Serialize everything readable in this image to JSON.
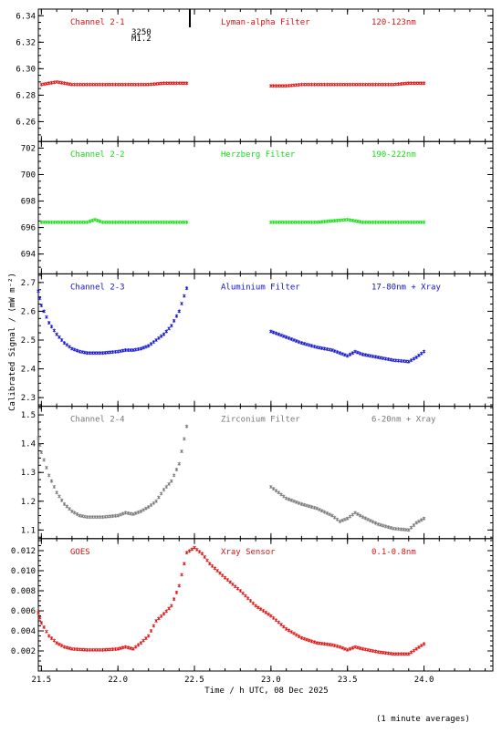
{
  "chart_data": {
    "type": "scatter",
    "ylabel": "Calibrated Signal / (mW m⁻²)",
    "xlabel": "Time / h UTC, 08 Dec 2025",
    "footnote": "(1 minute averages)",
    "xlim": [
      21.48,
      24.45
    ],
    "x_ticks": [
      "21.5",
      "22.0",
      "22.5",
      "23.0",
      "23.5",
      "24.0"
    ],
    "x_tick_values": [
      21.5,
      22.0,
      22.5,
      23.0,
      23.5,
      24.0
    ],
    "marker_note": {
      "line1": "3250",
      "line2": "M1.2",
      "time": 22.47
    },
    "panels": [
      {
        "id": "ch2-1",
        "color": "#dd1111",
        "channel": "Channel 2-1",
        "filter": "Lyman-alpha Filter",
        "band": "120-123nm",
        "ylim": [
          6.245,
          6.345
        ],
        "y_ticks": [
          "6.26",
          "6.28",
          "6.30",
          "6.32",
          "6.34"
        ],
        "y_tick_values": [
          6.26,
          6.28,
          6.3,
          6.32,
          6.34
        ],
        "series": [
          {
            "x": [
              21.5,
              21.55,
              21.6,
              21.65,
              21.7,
              21.8,
              21.9,
              22.0,
              22.1,
              22.2,
              22.3,
              22.4,
              22.45
            ],
            "y": [
              6.288,
              6.289,
              6.29,
              6.289,
              6.288,
              6.288,
              6.288,
              6.288,
              6.288,
              6.288,
              6.289,
              6.289,
              6.289
            ]
          },
          {
            "x": [
              23.0,
              23.1,
              23.2,
              23.3,
              23.4,
              23.5,
              23.6,
              23.7,
              23.8,
              23.9,
              24.0
            ],
            "y": [
              6.287,
              6.287,
              6.288,
              6.288,
              6.288,
              6.288,
              6.288,
              6.288,
              6.288,
              6.289,
              6.289
            ]
          }
        ]
      },
      {
        "id": "ch2-2",
        "color": "#11dd11",
        "channel": "Channel 2-2",
        "filter": "Herzberg Filter",
        "band": "190-222nm",
        "ylim": [
          692.5,
          702.5
        ],
        "y_ticks": [
          "694",
          "696",
          "698",
          "700",
          "702"
        ],
        "y_tick_values": [
          694,
          696,
          698,
          700,
          702
        ],
        "series": [
          {
            "x": [
              21.5,
              21.6,
              21.7,
              21.8,
              21.85,
              21.9,
              22.0,
              22.1,
              22.2,
              22.3,
              22.45
            ],
            "y": [
              696.4,
              696.4,
              696.4,
              696.4,
              696.6,
              696.4,
              696.4,
              696.4,
              696.4,
              696.4,
              696.4
            ]
          },
          {
            "x": [
              23.0,
              23.1,
              23.2,
              23.3,
              23.4,
              23.5,
              23.6,
              23.7,
              23.8,
              23.9,
              24.0
            ],
            "y": [
              696.4,
              696.4,
              696.4,
              696.4,
              696.5,
              696.6,
              696.4,
              696.4,
              696.4,
              696.4,
              696.4
            ]
          }
        ]
      },
      {
        "id": "ch2-3",
        "color": "#1111cc",
        "channel": "Channel 2-3",
        "filter": "Aluminium Filter",
        "band": "17-80nm + Xray",
        "ylim": [
          2.27,
          2.73
        ],
        "y_ticks": [
          "2.3",
          "2.4",
          "2.5",
          "2.6",
          "2.7"
        ],
        "y_tick_values": [
          2.3,
          2.4,
          2.5,
          2.6,
          2.7
        ],
        "series": [
          {
            "x": [
              21.48,
              21.5,
              21.55,
              21.6,
              21.65,
              21.7,
              21.75,
              21.8,
              21.9,
              22.0,
              22.05,
              22.1,
              22.15,
              22.2,
              22.25,
              22.3,
              22.35,
              22.4,
              22.45
            ],
            "y": [
              2.67,
              2.62,
              2.56,
              2.52,
              2.49,
              2.47,
              2.46,
              2.455,
              2.455,
              2.46,
              2.465,
              2.465,
              2.47,
              2.48,
              2.5,
              2.52,
              2.55,
              2.6,
              2.68
            ]
          },
          {
            "x": [
              23.0,
              23.05,
              23.1,
              23.2,
              23.3,
              23.4,
              23.5,
              23.55,
              23.6,
              23.7,
              23.8,
              23.9,
              23.95,
              24.0
            ],
            "y": [
              2.53,
              2.52,
              2.51,
              2.49,
              2.475,
              2.465,
              2.445,
              2.46,
              2.45,
              2.44,
              2.43,
              2.425,
              2.44,
              2.46
            ]
          }
        ]
      },
      {
        "id": "ch2-4",
        "color": "#777777",
        "channel": "Channel 2-4",
        "filter": "Zirconium Filter",
        "band": "6-20nm + Xray",
        "ylim": [
          1.07,
          1.53
        ],
        "y_ticks": [
          "1.1",
          "1.2",
          "1.3",
          "1.4",
          "1.5"
        ],
        "y_tick_values": [
          1.1,
          1.2,
          1.3,
          1.4,
          1.5
        ],
        "series": [
          {
            "x": [
              21.48,
              21.5,
              21.55,
              21.6,
              21.65,
              21.7,
              21.75,
              21.8,
              21.9,
              22.0,
              22.05,
              22.1,
              22.15,
              22.2,
              22.25,
              22.3,
              22.35,
              22.4,
              22.45
            ],
            "y": [
              1.42,
              1.37,
              1.29,
              1.23,
              1.19,
              1.165,
              1.15,
              1.145,
              1.145,
              1.15,
              1.16,
              1.155,
              1.165,
              1.18,
              1.2,
              1.24,
              1.27,
              1.33,
              1.46
            ]
          },
          {
            "x": [
              23.0,
              23.05,
              23.1,
              23.2,
              23.3,
              23.4,
              23.45,
              23.5,
              23.55,
              23.6,
              23.7,
              23.8,
              23.9,
              23.95,
              24.0
            ],
            "y": [
              1.25,
              1.23,
              1.21,
              1.19,
              1.175,
              1.15,
              1.13,
              1.14,
              1.16,
              1.145,
              1.12,
              1.105,
              1.1,
              1.125,
              1.14
            ]
          }
        ]
      },
      {
        "id": "goes",
        "color": "#dd1111",
        "channel": "GOES",
        "filter": "Xray Sensor",
        "band": "0.1-0.8nm",
        "ylim": [
          0.0,
          0.0132
        ],
        "y_ticks": [
          "0.002",
          "0.004",
          "0.006",
          "0.008",
          "0.010",
          "0.012"
        ],
        "y_tick_values": [
          0.002,
          0.004,
          0.006,
          0.008,
          0.01,
          0.012
        ],
        "series": [
          {
            "x": [
              21.48,
              21.5,
              21.55,
              21.6,
              21.65,
              21.7,
              21.8,
              21.9,
              22.0,
              22.05,
              22.1,
              22.15,
              22.2,
              22.25,
              22.3,
              22.35,
              22.4,
              22.45,
              22.5,
              22.55,
              22.6,
              22.7,
              22.8,
              22.9,
              23.0,
              23.1,
              23.2,
              23.3,
              23.4,
              23.45,
              23.5,
              23.55,
              23.6,
              23.7,
              23.8,
              23.9,
              23.95,
              24.0
            ],
            "y": [
              0.0058,
              0.0048,
              0.0035,
              0.0028,
              0.0024,
              0.0022,
              0.0021,
              0.0021,
              0.0022,
              0.0024,
              0.0022,
              0.0028,
              0.0035,
              0.005,
              0.0057,
              0.0065,
              0.0085,
              0.0118,
              0.0123,
              0.0117,
              0.0107,
              0.0093,
              0.008,
              0.0065,
              0.0055,
              0.0042,
              0.0033,
              0.0028,
              0.0026,
              0.0024,
              0.0021,
              0.0024,
              0.0022,
              0.0019,
              0.0017,
              0.0017,
              0.0022,
              0.0027
            ]
          }
        ]
      }
    ]
  }
}
